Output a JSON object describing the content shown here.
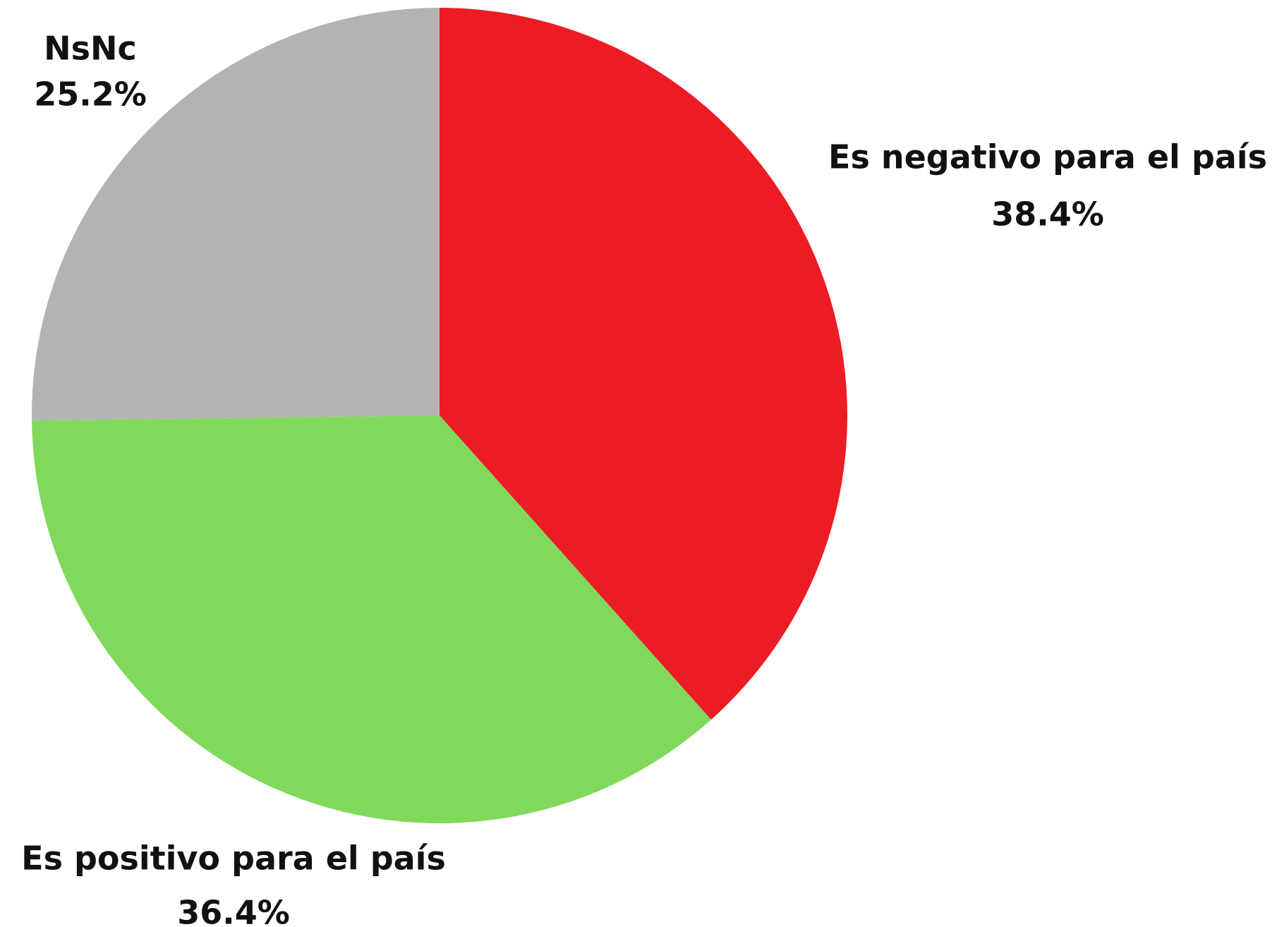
{
  "chart_data": {
    "type": "pie",
    "categories": [
      "Es negativo para el país",
      "Es positivo para el país",
      "NsNc"
    ],
    "values": [
      38.4,
      36.4,
      25.2
    ],
    "value_labels": [
      "38.4%",
      "36.4%",
      "25.2%"
    ],
    "colors": [
      "#ed1c24",
      "#80d95a",
      "#b3b3b3"
    ]
  }
}
